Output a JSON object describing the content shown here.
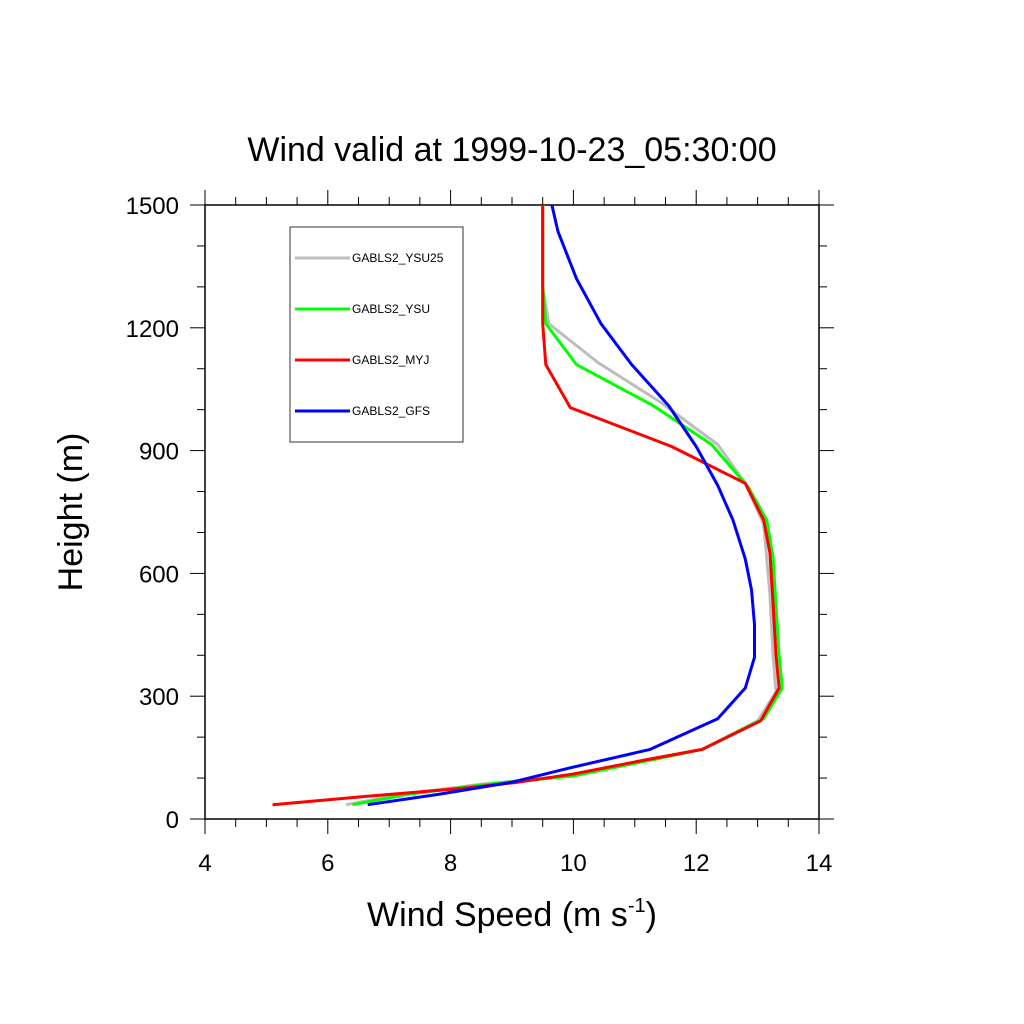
{
  "chart_data": {
    "type": "line",
    "title": "Wind valid at 1999-10-23_05:30:00",
    "xlabel": "Wind Speed (m s",
    "xlabel_sup": "-1",
    "xlabel_tail": ")",
    "ylabel": "Height (m)",
    "xlim": [
      4,
      14
    ],
    "ylim": [
      0,
      1500
    ],
    "x_ticks": [
      4,
      6,
      8,
      10,
      12,
      14
    ],
    "y_ticks": [
      0,
      300,
      600,
      900,
      1200,
      1500
    ],
    "x_tick_labels": [
      "4",
      "6",
      "8",
      "10",
      "12",
      "14"
    ],
    "y_tick_labels": [
      "0",
      "300",
      "600",
      "900",
      "1200",
      "1500"
    ],
    "grid": false,
    "legend_position": "top-left",
    "series": [
      {
        "name": "GABLS2_YSU25",
        "color": "#bdbdbd",
        "points": [
          [
            6.3,
            35
          ],
          [
            7.2,
            60
          ],
          [
            8.5,
            85
          ],
          [
            9.9,
            105
          ],
          [
            11.2,
            145
          ],
          [
            12.1,
            170
          ],
          [
            13.0,
            240
          ],
          [
            13.3,
            310
          ],
          [
            13.25,
            400
          ],
          [
            13.2,
            550
          ],
          [
            13.1,
            720
          ],
          [
            12.8,
            820
          ],
          [
            12.35,
            915
          ],
          [
            11.4,
            1020
          ],
          [
            10.4,
            1115
          ],
          [
            9.6,
            1210
          ],
          [
            9.5,
            1300
          ],
          [
            9.5,
            1500
          ]
        ]
      },
      {
        "name": "GABLS2_YSU",
        "color": "#00ff00",
        "points": [
          [
            6.4,
            35
          ],
          [
            7.3,
            60
          ],
          [
            8.6,
            85
          ],
          [
            10.0,
            105
          ],
          [
            11.3,
            145
          ],
          [
            12.1,
            170
          ],
          [
            13.1,
            245
          ],
          [
            13.4,
            320
          ],
          [
            13.35,
            400
          ],
          [
            13.3,
            520
          ],
          [
            13.25,
            640
          ],
          [
            13.15,
            730
          ],
          [
            12.85,
            810
          ],
          [
            12.25,
            915
          ],
          [
            11.3,
            1010
          ],
          [
            10.05,
            1110
          ],
          [
            9.55,
            1210
          ],
          [
            9.5,
            1300
          ],
          [
            9.5,
            1500
          ]
        ]
      },
      {
        "name": "GABLS2_MYJ",
        "color": "#ff0000",
        "points": [
          [
            5.1,
            35
          ],
          [
            6.6,
            55
          ],
          [
            8.2,
            75
          ],
          [
            9.1,
            90
          ],
          [
            10.0,
            110
          ],
          [
            11.2,
            145
          ],
          [
            12.1,
            170
          ],
          [
            13.05,
            240
          ],
          [
            13.35,
            320
          ],
          [
            13.3,
            400
          ],
          [
            13.25,
            530
          ],
          [
            13.2,
            650
          ],
          [
            13.1,
            730
          ],
          [
            12.8,
            820
          ],
          [
            11.6,
            910
          ],
          [
            9.95,
            1005
          ],
          [
            9.55,
            1110
          ],
          [
            9.5,
            1210
          ],
          [
            9.5,
            1300
          ],
          [
            9.5,
            1500
          ]
        ]
      },
      {
        "name": "GABLS2_GFS",
        "color": "#0000ff",
        "points": [
          [
            6.65,
            35
          ],
          [
            7.8,
            60
          ],
          [
            9.0,
            90
          ],
          [
            9.95,
            125
          ],
          [
            11.25,
            170
          ],
          [
            12.35,
            245
          ],
          [
            12.8,
            320
          ],
          [
            12.95,
            395
          ],
          [
            12.95,
            475
          ],
          [
            12.9,
            560
          ],
          [
            12.8,
            635
          ],
          [
            12.6,
            730
          ],
          [
            12.35,
            815
          ],
          [
            12.0,
            910
          ],
          [
            11.55,
            1010
          ],
          [
            10.95,
            1110
          ],
          [
            10.45,
            1210
          ],
          [
            10.05,
            1320
          ],
          [
            9.75,
            1435
          ],
          [
            9.65,
            1500
          ]
        ]
      }
    ]
  }
}
